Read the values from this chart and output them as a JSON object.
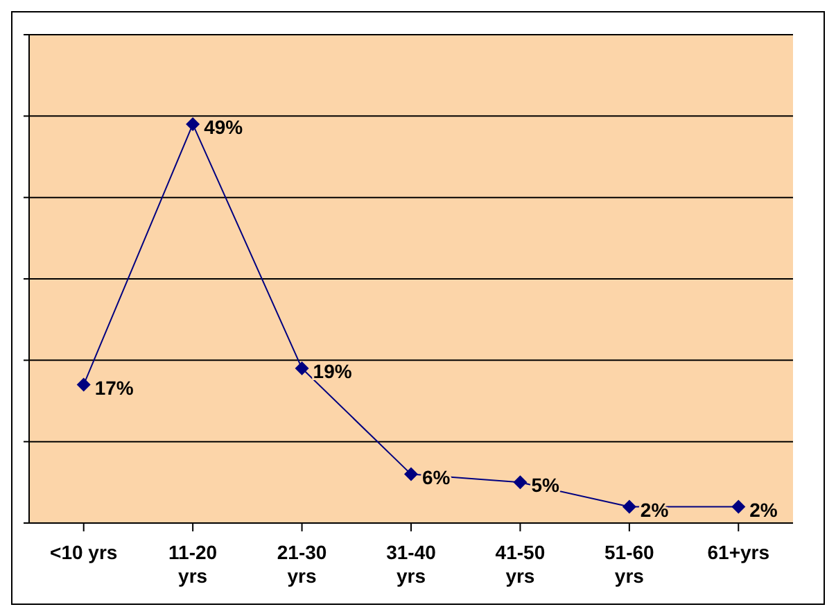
{
  "chart_data": {
    "type": "line",
    "categories": [
      "<10 yrs",
      "11-20 yrs",
      "21-30 yrs",
      "31-40 yrs",
      "41-50 yrs",
      "51-60 yrs",
      "61+yrs"
    ],
    "series": [
      {
        "color": "#000080",
        "values": [
          17,
          49,
          19,
          6,
          5,
          2,
          2
        ],
        "value_labels": [
          "17%",
          "49%",
          "19%",
          "6%",
          "5%",
          "2%",
          "2%"
        ]
      }
    ],
    "ylim": [
      0,
      60
    ],
    "yticks": [
      {
        "value": 0,
        "label": null
      },
      {
        "value": 10,
        "label": null
      },
      {
        "value": 20,
        "label": null
      },
      {
        "value": 30,
        "label": null
      },
      {
        "value": 40,
        "label": null
      },
      {
        "value": 50,
        "label": null
      },
      {
        "value": 60,
        "label": null
      }
    ],
    "tick_labels": "x",
    "grid": "y",
    "marker": "diamond",
    "line_style": "solid"
  }
}
